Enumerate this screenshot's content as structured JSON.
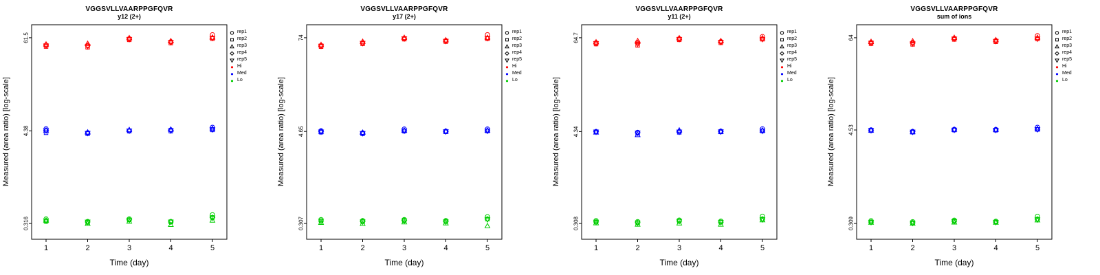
{
  "figure": {
    "background": "#ffffff",
    "legend": {
      "reps": [
        {
          "label": "rep1",
          "symbol": "circle"
        },
        {
          "label": "rep2",
          "symbol": "square"
        },
        {
          "label": "rep3",
          "symbol": "triangle-up"
        },
        {
          "label": "rep4",
          "symbol": "diamond"
        },
        {
          "label": "rep5",
          "symbol": "triangle-down"
        }
      ],
      "levels": [
        {
          "label": "Hi",
          "color": "#FF0000"
        },
        {
          "label": "Med",
          "color": "#0000FF"
        },
        {
          "label": "Lo",
          "color": "#00CD00"
        }
      ]
    }
  },
  "chart_data": [
    {
      "type": "scatter",
      "title": "VGGSVLLVAARPPGFQVR",
      "subtitle": "y12 (2+)",
      "xlabel": "Time (day)",
      "ylabel": "Measured (area ratio) [log-scale]",
      "x": [
        1,
        2,
        3,
        4,
        5
      ],
      "y_scale": "log",
      "y_ticks": [
        0.316,
        4.38,
        61.5
      ],
      "legend_position": "right",
      "series": [
        {
          "name": "Hi",
          "color": "#FF0000",
          "values_by_day": [
            [
              50,
              48,
              51,
              50,
              49
            ],
            [
              50,
              47,
              52,
              49,
              48
            ],
            [
              60,
              58,
              61,
              59,
              59
            ],
            [
              55,
              53,
              56,
              54,
              54
            ],
            [
              67,
              60,
              62,
              61,
              61
            ]
          ]
        },
        {
          "name": "Med",
          "color": "#0000FF",
          "values_by_day": [
            [
              4.65,
              4.15,
              4.45,
              4.45,
              4.4
            ],
            [
              4.15,
              4.05,
              4.2,
              4.1,
              4.1
            ],
            [
              4.4,
              4.35,
              4.5,
              4.4,
              4.38
            ],
            [
              4.5,
              4.35,
              4.55,
              4.45,
              4.4
            ],
            [
              4.85,
              4.5,
              4.65,
              4.6,
              4.55
            ]
          ]
        },
        {
          "name": "Lo",
          "color": "#00CD00",
          "values_by_day": [
            [
              0.36,
              0.335,
              0.345,
              0.34,
              0.34
            ],
            [
              0.335,
              0.325,
              0.315,
              0.33,
              0.33
            ],
            [
              0.36,
              0.35,
              0.335,
              0.35,
              0.348
            ],
            [
              0.335,
              0.33,
              0.305,
              0.33,
              0.33
            ],
            [
              0.405,
              0.375,
              0.345,
              0.375,
              0.37
            ]
          ]
        }
      ]
    },
    {
      "type": "scatter",
      "title": "VGGSVLLVAARPPGFQVR",
      "subtitle": "y17 (2+)",
      "xlabel": "Time (day)",
      "ylabel": "Measured (area ratio) [log-scale]",
      "x": [
        1,
        2,
        3,
        4,
        5
      ],
      "y_scale": "log",
      "y_ticks": [
        0.307,
        4.65,
        74
      ],
      "legend_position": "right",
      "series": [
        {
          "name": "Hi",
          "color": "#FF0000",
          "values_by_day": [
            [
              59,
              57,
              60,
              58,
              58
            ],
            [
              64,
              62,
              66,
              63,
              63
            ],
            [
              73,
              71,
              74,
              72,
              72
            ],
            [
              68,
              66,
              69,
              67,
              67
            ],
            [
              81,
              72,
              74,
              73,
              73
            ]
          ]
        },
        {
          "name": "Med",
          "color": "#0000FF",
          "values_by_day": [
            [
              4.75,
              4.55,
              4.65,
              4.65,
              4.6
            ],
            [
              4.45,
              4.35,
              4.5,
              4.4,
              4.4
            ],
            [
              5.0,
              4.7,
              4.8,
              4.75,
              4.72
            ],
            [
              4.7,
              4.6,
              4.68,
              4.65,
              4.62
            ],
            [
              5.0,
              4.72,
              4.8,
              4.75,
              4.72
            ]
          ]
        },
        {
          "name": "Lo",
          "color": "#00CD00",
          "values_by_day": [
            [
              0.345,
              0.33,
              0.315,
              0.33,
              0.33
            ],
            [
              0.335,
              0.325,
              0.305,
              0.325,
              0.322
            ],
            [
              0.345,
              0.335,
              0.32,
              0.335,
              0.332
            ],
            [
              0.335,
              0.325,
              0.31,
              0.325,
              0.322
            ],
            [
              0.375,
              0.35,
              0.285,
              0.35,
              0.345
            ]
          ]
        }
      ]
    },
    {
      "type": "scatter",
      "title": "VGGSVLLVAARPPGFQVR",
      "subtitle": "y11 (2+)",
      "xlabel": "Time (day)",
      "ylabel": "Measured (area ratio) [log-scale]",
      "x": [
        1,
        2,
        3,
        4,
        5
      ],
      "y_scale": "log",
      "y_ticks": [
        0.308,
        4.34,
        64.7
      ],
      "legend_position": "right",
      "series": [
        {
          "name": "Hi",
          "color": "#FF0000",
          "values_by_day": [
            [
              56,
              54,
              57,
              55,
              55
            ],
            [
              57,
              52,
              59,
              55,
              54
            ],
            [
              63,
              61,
              64,
              62,
              62
            ],
            [
              58,
              56,
              59,
              57,
              57
            ],
            [
              67,
              62,
              64,
              63,
              62
            ]
          ]
        },
        {
          "name": "Med",
          "color": "#0000FF",
          "values_by_day": [
            [
              4.35,
              4.3,
              4.25,
              4.32,
              4.3
            ],
            [
              4.25,
              4.15,
              3.95,
              4.2,
              4.18
            ],
            [
              4.35,
              4.25,
              4.5,
              4.32,
              4.3
            ],
            [
              4.4,
              4.3,
              4.35,
              4.35,
              4.32
            ],
            [
              4.7,
              4.42,
              4.5,
              4.45,
              4.42
            ]
          ]
        },
        {
          "name": "Lo",
          "color": "#00CD00",
          "values_by_day": [
            [
              0.335,
              0.322,
              0.312,
              0.322,
              0.32
            ],
            [
              0.325,
              0.315,
              0.3,
              0.315,
              0.312
            ],
            [
              0.34,
              0.33,
              0.31,
              0.33,
              0.328
            ],
            [
              0.33,
              0.32,
              0.3,
              0.32,
              0.318
            ],
            [
              0.38,
              0.35,
              0.34,
              0.35,
              0.345
            ]
          ]
        }
      ]
    },
    {
      "type": "scatter",
      "title": "VGGSVLLVAARPPGFQVR",
      "subtitle": "sum of ions",
      "xlabel": "Time (day)",
      "ylabel": "Measured (area ratio) [log-scale]",
      "x": [
        1,
        2,
        3,
        4,
        5
      ],
      "y_scale": "log",
      "y_ticks": [
        0.309,
        4.53,
        64
      ],
      "legend_position": "right",
      "series": [
        {
          "name": "Hi",
          "color": "#FF0000",
          "values_by_day": [
            [
              56,
              54,
              57,
              55,
              55
            ],
            [
              56,
              53,
              58,
              55,
              54
            ],
            [
              63,
              61,
              64,
              62,
              62
            ],
            [
              59,
              57,
              60,
              58,
              58
            ],
            [
              68,
              62,
              64,
              63,
              62
            ]
          ]
        },
        {
          "name": "Med",
          "color": "#0000FF",
          "values_by_day": [
            [
              4.55,
              4.45,
              4.48,
              4.5,
              4.48
            ],
            [
              4.35,
              4.25,
              4.28,
              4.3,
              4.28
            ],
            [
              4.62,
              4.52,
              4.58,
              4.55,
              4.53
            ],
            [
              4.6,
              4.5,
              4.55,
              4.53,
              4.52
            ],
            [
              4.9,
              4.6,
              4.68,
              4.62,
              4.6
            ]
          ]
        },
        {
          "name": "Lo",
          "color": "#00CD00",
          "values_by_day": [
            [
              0.335,
              0.322,
              0.318,
              0.322,
              0.32
            ],
            [
              0.325,
              0.315,
              0.31,
              0.315,
              0.312
            ],
            [
              0.34,
              0.33,
              0.32,
              0.33,
              0.328
            ],
            [
              0.33,
              0.322,
              0.318,
              0.322,
              0.32
            ],
            [
              0.38,
              0.35,
              0.34,
              0.35,
              0.345
            ]
          ]
        }
      ]
    }
  ]
}
